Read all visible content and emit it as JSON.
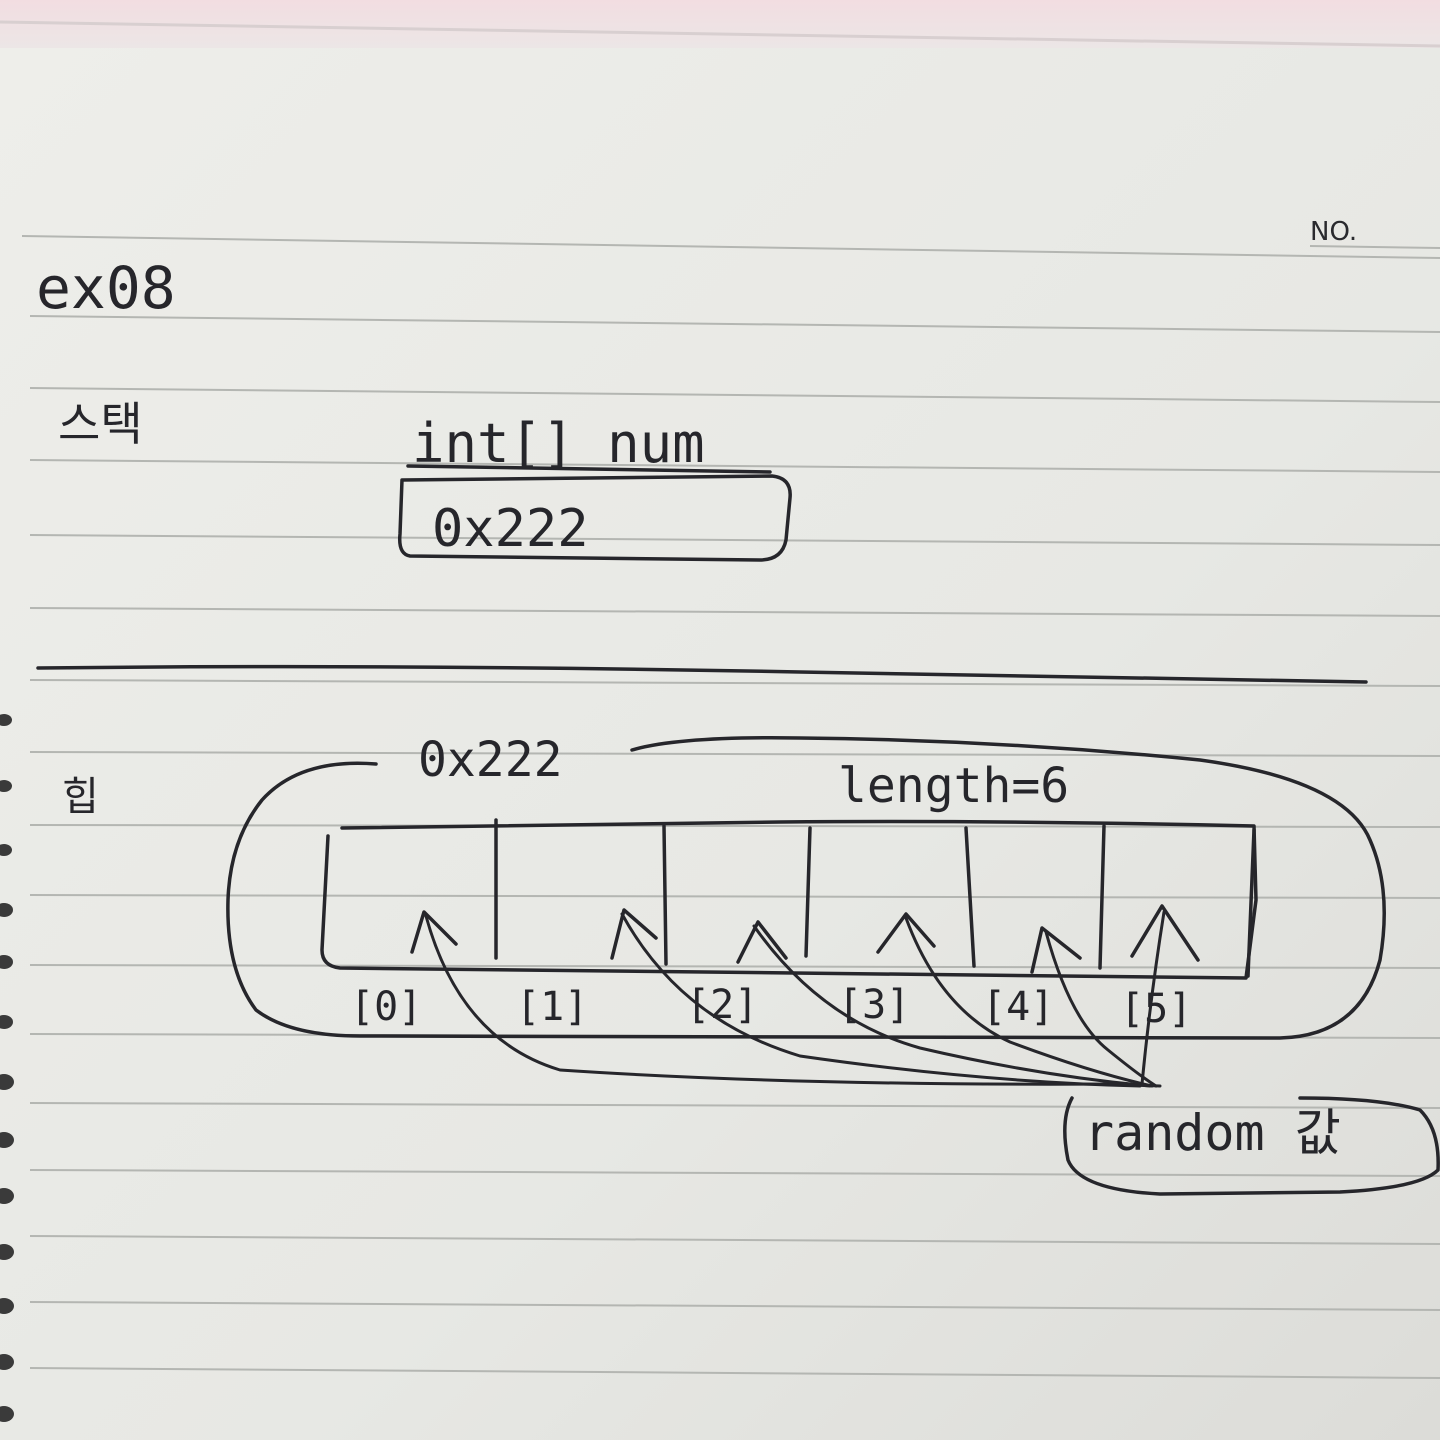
{
  "notebook": {
    "no_label": "NO."
  },
  "heading": {
    "title": "ex08",
    "left_note_1": "스택",
    "left_note_2": "힙"
  },
  "stack": {
    "type_name": "int[] num",
    "reference_value": "0x222"
  },
  "heap": {
    "address": "0x222",
    "length_label": "length=6",
    "index_labels": [
      "[0]",
      "[1]",
      "[2]",
      "[3]",
      "[4]",
      "[5]"
    ],
    "source_label": "random 값"
  }
}
